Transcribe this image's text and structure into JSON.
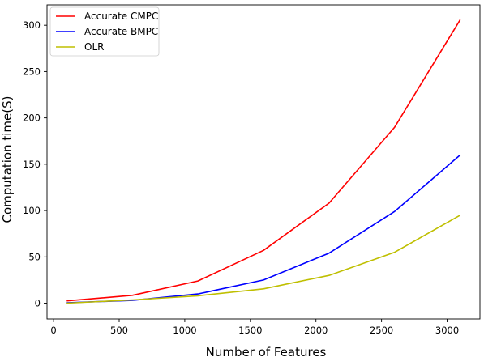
{
  "chart_data": {
    "type": "line",
    "title": "",
    "xlabel": "Number of Features",
    "ylabel": "Computation time(S)",
    "x": [
      100,
      600,
      1100,
      1600,
      2100,
      2600,
      3100
    ],
    "xlim": [
      -50,
      3250
    ],
    "ylim": [
      -17,
      322
    ],
    "xticks": [
      0,
      500,
      1000,
      1500,
      2000,
      2500,
      3000
    ],
    "yticks": [
      0,
      50,
      100,
      150,
      200,
      250,
      300
    ],
    "grid": false,
    "legend_position": "top-left",
    "series": [
      {
        "name": "Accurate CMPC",
        "color": "#ff0000",
        "values": [
          2.5,
          8.5,
          24,
          57,
          108,
          190,
          306
        ]
      },
      {
        "name": "Accurate BMPC",
        "color": "#0000ff",
        "values": [
          0.5,
          3,
          10,
          25,
          54,
          99,
          160
        ]
      },
      {
        "name": "OLR",
        "color": "#bfbf00",
        "values": [
          0,
          3.5,
          8,
          15.5,
          30,
          55,
          95
        ]
      }
    ]
  }
}
